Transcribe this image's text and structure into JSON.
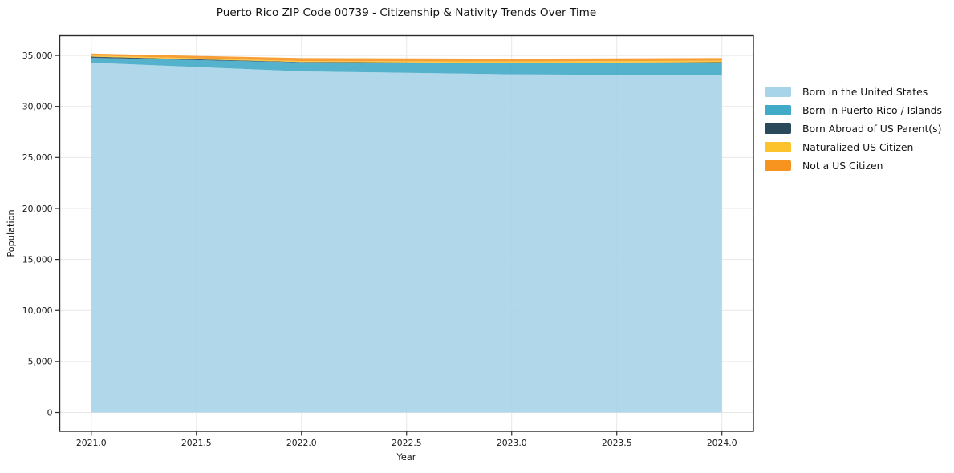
{
  "chart_data": {
    "type": "area",
    "stacked": true,
    "title": "Puerto Rico ZIP Code 00739 - Citizenship & Nativity Trends Over Time",
    "xlabel": "Year",
    "ylabel": "Population",
    "x": [
      2021,
      2022,
      2023,
      2024
    ],
    "series": [
      {
        "name": "Born in the United States",
        "color": "#a7d4e8",
        "values": [
          34290,
          33440,
          33150,
          33050
        ]
      },
      {
        "name": "Born in Puerto Rico / Islands",
        "color": "#41aac7",
        "values": [
          480,
          870,
          1070,
          1240
        ]
      },
      {
        "name": "Born Abroad of US Parent(s)",
        "color": "#2a4a5c",
        "values": [
          120,
          50,
          50,
          50
        ]
      },
      {
        "name": "Naturalized US Citizen",
        "color": "#fcc32d",
        "values": [
          110,
          90,
          140,
          140
        ]
      },
      {
        "name": "Not a US Citizen",
        "color": "#f79420",
        "values": [
          180,
          290,
          270,
          260
        ]
      }
    ],
    "xticks": {
      "values": [
        2021,
        2021.5,
        2022,
        2022.5,
        2023,
        2023.5,
        2024
      ],
      "labels": [
        "2021.0",
        "2021.5",
        "2022.0",
        "2022.5",
        "2023.0",
        "2023.5",
        "2024.0"
      ]
    },
    "yticks": {
      "values": [
        0,
        5000,
        10000,
        15000,
        20000,
        25000,
        30000,
        35000
      ],
      "labels": [
        "0",
        "5,000",
        "10,000",
        "15,000",
        "20,000",
        "25,000",
        "30,000",
        "35,000"
      ]
    },
    "xlim": [
      2020.85,
      2024.15
    ],
    "ylim": [
      -1846,
      36930
    ],
    "grid": true,
    "legend_position": "right-outside"
  },
  "colors": {
    "grid": "#e7e7e7",
    "frame": "#2b2b2b",
    "tick": "#2b2b2b",
    "text": "#1a1a1a",
    "background": "#ffffff"
  }
}
